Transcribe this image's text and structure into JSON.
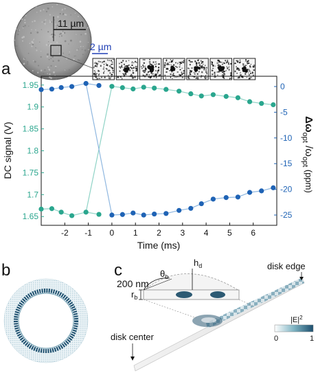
{
  "panels": {
    "a": "a",
    "b": "b",
    "c": "c"
  },
  "micrograph": {
    "scale_top": "11 µm",
    "scale_inset": "2 µm",
    "frame_count": 7
  },
  "colors": {
    "green": "#2aa68e",
    "green_light": "#8fd3c6",
    "blue": "#1f63b5",
    "blue_light": "#8fb7e0",
    "axis_green": "#2aa68e",
    "axis_blue": "#1f63b5"
  },
  "chart_data": {
    "type": "scatter",
    "xlabel": "Time (ms)",
    "ylabel_left": "DC signal (V)",
    "ylabel_right_main": "Δω",
    "ylabel_right_sub1": "opt",
    "ylabel_right_mid": " /ω",
    "ylabel_right_sub2": "opt",
    "ylabel_right_unit": " (ppm)",
    "xlim": [
      -3,
      7
    ],
    "ylim_left": [
      1.63,
      1.97
    ],
    "ylim_right": [
      -27,
      2
    ],
    "x_ticks": [
      -2,
      -1,
      0,
      1,
      2,
      3,
      4,
      5,
      6
    ],
    "x_tick_labels": [
      "-2",
      "-1",
      "0",
      "1",
      "2",
      "3",
      "4",
      "5",
      "6"
    ],
    "left_ticks": [
      1.65,
      1.7,
      1.75,
      1.8,
      1.85,
      1.9,
      1.95
    ],
    "left_tick_labels": [
      "1.65",
      "1.7",
      "1.75",
      "1.8",
      "1.85",
      "1.9",
      "1.95"
    ],
    "right_ticks": [
      0,
      -5,
      -10,
      -15,
      -20,
      -25
    ],
    "right_tick_labels": [
      "0",
      "-5",
      "-10",
      "-15",
      "-20",
      "-25"
    ],
    "series": [
      {
        "name": "",
        "axis": "right",
        "color": "#1f63b5",
        "x": [
          -3.0,
          -2.55,
          -2.15,
          -1.7,
          -1.1,
          -0.55,
          0.0,
          0.45,
          0.9,
          1.35,
          1.8,
          2.3,
          2.85,
          3.35,
          3.8,
          4.3,
          4.85,
          5.35,
          5.85,
          6.35,
          6.85
        ],
        "y": [
          -0.6,
          -0.5,
          -0.2,
          0.0,
          0.6,
          0.2,
          -25.0,
          -24.9,
          -24.6,
          -25.0,
          -24.8,
          -24.7,
          -24.1,
          -23.7,
          -22.8,
          -21.9,
          -21.6,
          -21.5,
          -20.6,
          -20.3,
          -19.7
        ]
      },
      {
        "name": "",
        "axis": "left",
        "color": "#2aa68e",
        "x": [
          -3.0,
          -2.55,
          -2.15,
          -1.7,
          -1.1,
          -0.55,
          0.0,
          0.45,
          0.9,
          1.35,
          1.8,
          2.3,
          2.85,
          3.35,
          3.8,
          4.3,
          4.85,
          5.35,
          5.85,
          6.35,
          6.85
        ],
        "y": [
          1.667,
          1.668,
          1.66,
          1.652,
          1.66,
          1.655,
          1.947,
          1.944,
          1.941,
          1.945,
          1.943,
          1.94,
          1.936,
          1.93,
          1.925,
          1.928,
          1.924,
          1.921,
          1.912,
          1.908,
          1.905
        ]
      }
    ],
    "cross_lines": [
      {
        "from": [
          -1.1,
          1.66
        ],
        "to": [
          0.0,
          1.947
        ],
        "axis": "left",
        "color": "#8fd3c6"
      },
      {
        "from": [
          -1.1,
          0.6
        ],
        "to": [
          0.0,
          -25.0
        ],
        "axis": "right",
        "color": "#8fb7e0"
      }
    ]
  },
  "panel_c": {
    "label_200nm": "200 nm",
    "theta": "θ",
    "theta_sub": "b",
    "h": "h",
    "h_sub": "d",
    "r": "r",
    "r_sub": "b",
    "disk_edge": "disk edge",
    "disk_center": "disk center",
    "colorbar_title": "|E|",
    "colorbar_sup": "2",
    "colorbar_min": "0",
    "colorbar_max": "1"
  }
}
